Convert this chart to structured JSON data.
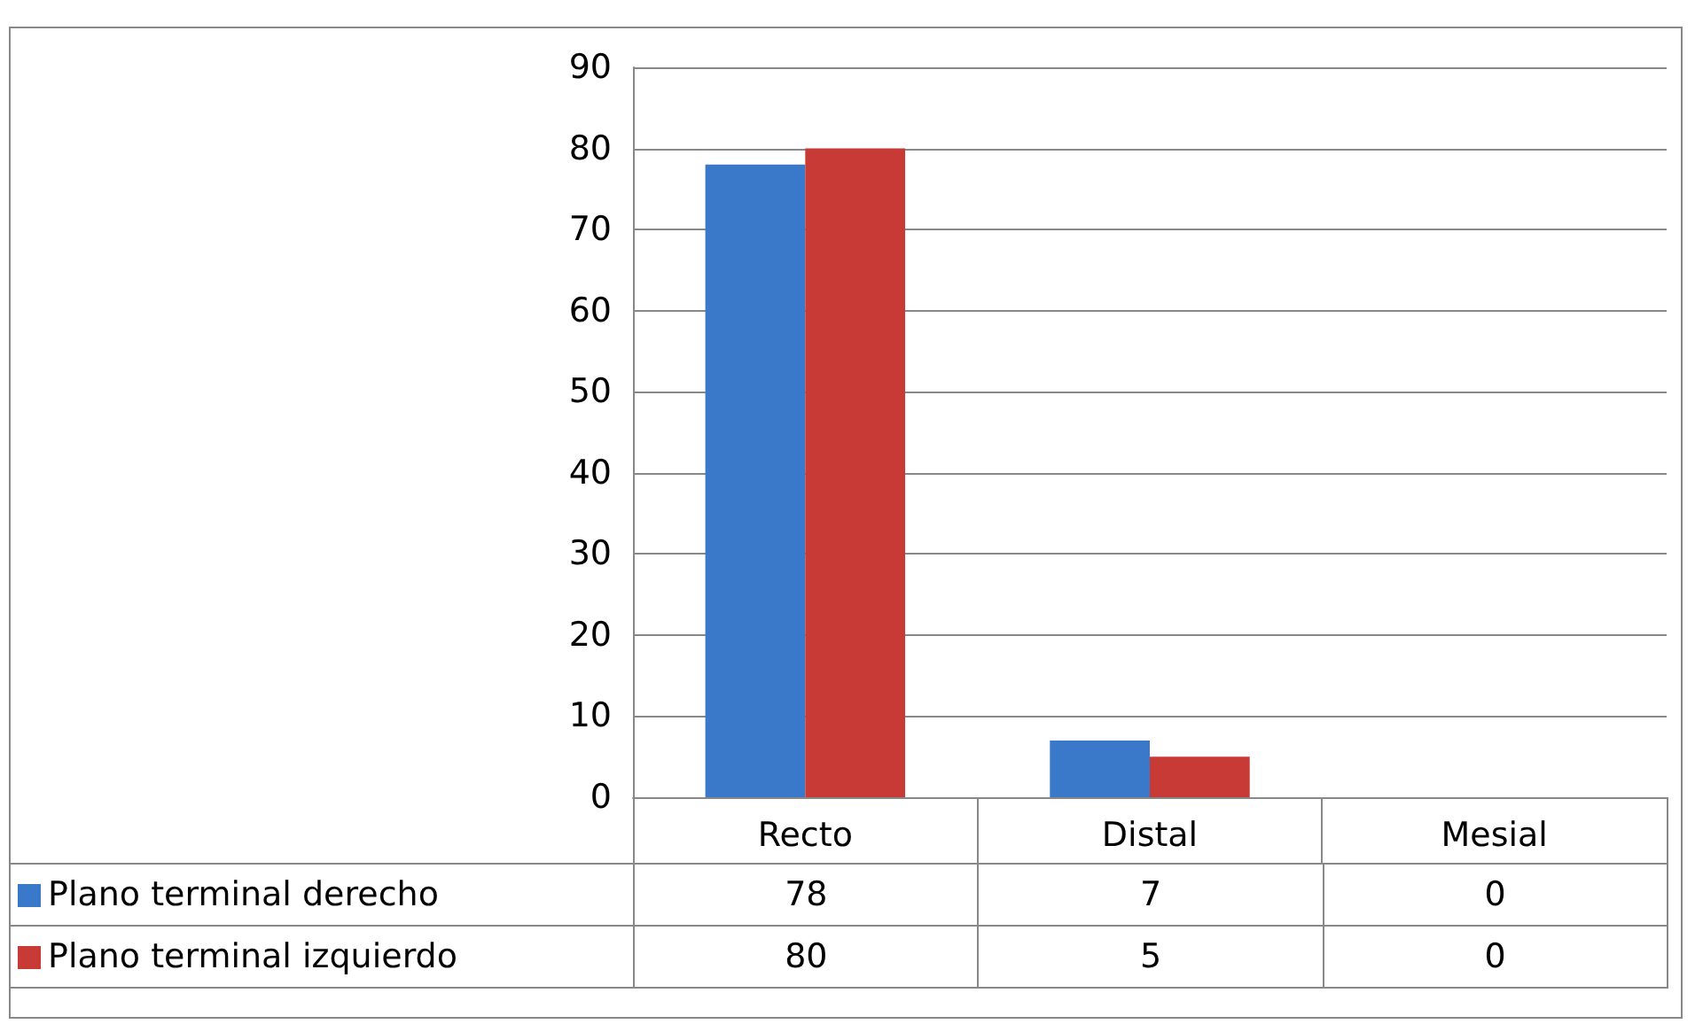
{
  "chart_data": {
    "type": "bar",
    "categories": [
      "Recto",
      "Distal",
      "Mesial"
    ],
    "series": [
      {
        "name": "Plano terminal derecho",
        "color": "#3a78c9",
        "values": [
          78,
          7,
          0
        ]
      },
      {
        "name": "Plano terminal izquierdo",
        "color": "#c83a36",
        "values": [
          80,
          5,
          0
        ]
      }
    ],
    "ylim": [
      0,
      90
    ],
    "yticks": [
      0,
      10,
      20,
      30,
      40,
      50,
      60,
      70,
      80,
      90
    ],
    "grid": "y",
    "legend": "bottom left",
    "data_labels": true
  }
}
